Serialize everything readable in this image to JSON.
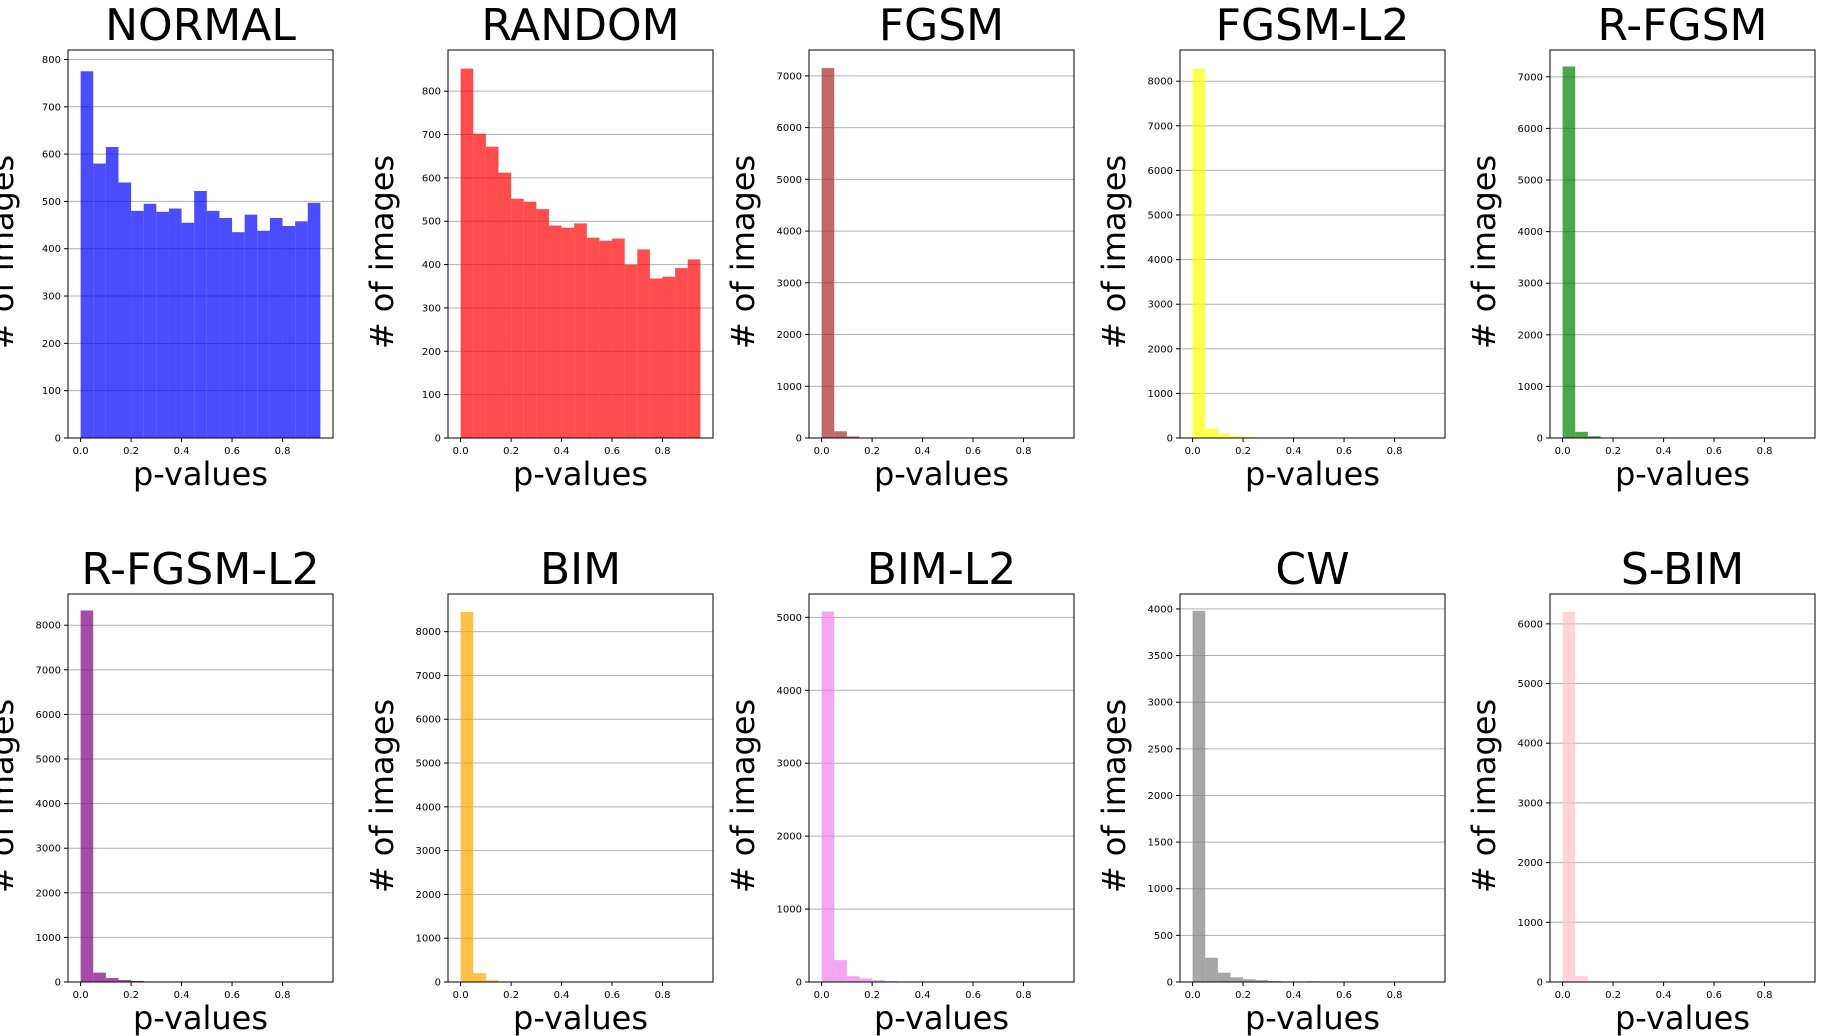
{
  "chart_data": [
    {
      "type": "bar",
      "title": "NORMAL",
      "xlabel": "p-values",
      "ylabel": "# of images",
      "color": "#0000ff",
      "opacity": 0.7,
      "bin_width": 0.05,
      "xlim": [
        -0.05,
        1.0
      ],
      "ylim": [
        0,
        820
      ],
      "xticks": [
        0.0,
        0.2,
        0.4,
        0.6,
        0.8
      ],
      "xtick_labels": [
        "0.0",
        "0.2",
        "0.4",
        "0.6",
        "0.8"
      ],
      "yticks": [
        0,
        100,
        200,
        300,
        400,
        500,
        600,
        700,
        800
      ],
      "ytick_labels": [
        "0",
        "100",
        "200",
        "300",
        "400",
        "500",
        "600",
        "700",
        "800"
      ],
      "bin_starts": [
        0.0,
        0.05,
        0.1,
        0.15,
        0.2,
        0.25,
        0.3,
        0.35,
        0.4,
        0.45,
        0.5,
        0.55,
        0.6,
        0.65,
        0.7,
        0.75,
        0.8,
        0.85,
        0.9
      ],
      "values": [
        775,
        580,
        615,
        540,
        480,
        495,
        478,
        485,
        455,
        522,
        480,
        465,
        435,
        472,
        438,
        465,
        448,
        458,
        497
      ],
      "grid": "y"
    },
    {
      "type": "bar",
      "title": "RANDOM",
      "xlabel": "p-values",
      "ylabel": "# of images",
      "color": "#ff0000",
      "opacity": 0.7,
      "bin_width": 0.05,
      "xlim": [
        -0.05,
        1.0
      ],
      "ylim": [
        0,
        895
      ],
      "xticks": [
        0.0,
        0.2,
        0.4,
        0.6,
        0.8
      ],
      "xtick_labels": [
        "0.0",
        "0.2",
        "0.4",
        "0.6",
        "0.8"
      ],
      "yticks": [
        0,
        100,
        200,
        300,
        400,
        500,
        600,
        700,
        800
      ],
      "ytick_labels": [
        "0",
        "100",
        "200",
        "300",
        "400",
        "500",
        "600",
        "700",
        "800"
      ],
      "bin_starts": [
        0.0,
        0.05,
        0.1,
        0.15,
        0.2,
        0.25,
        0.3,
        0.35,
        0.4,
        0.45,
        0.5,
        0.55,
        0.6,
        0.65,
        0.7,
        0.75,
        0.8,
        0.85,
        0.9
      ],
      "values": [
        852,
        702,
        672,
        612,
        552,
        545,
        528,
        490,
        485,
        495,
        462,
        455,
        460,
        400,
        435,
        368,
        372,
        392,
        412
      ],
      "grid": "y"
    },
    {
      "type": "bar",
      "title": "FGSM",
      "xlabel": "p-values",
      "ylabel": "# of images",
      "color": "#a52a2a",
      "opacity": 0.7,
      "bin_width": 0.05,
      "xlim": [
        -0.05,
        1.0
      ],
      "ylim": [
        0,
        7500
      ],
      "xticks": [
        0.0,
        0.2,
        0.4,
        0.6,
        0.8
      ],
      "xtick_labels": [
        "0.0",
        "0.2",
        "0.4",
        "0.6",
        "0.8"
      ],
      "yticks": [
        0,
        1000,
        2000,
        3000,
        4000,
        5000,
        6000,
        7000
      ],
      "ytick_labels": [
        "0",
        "1000",
        "2000",
        "3000",
        "4000",
        "5000",
        "6000",
        "7000"
      ],
      "bin_starts": [
        0.0,
        0.05,
        0.1,
        0.15
      ],
      "values": [
        7150,
        130,
        30,
        8
      ],
      "grid": "y"
    },
    {
      "type": "bar",
      "title": "FGSM-L2",
      "xlabel": "p-values",
      "ylabel": "# of images",
      "color": "#ffff00",
      "opacity": 0.7,
      "bin_width": 0.05,
      "xlim": [
        -0.05,
        1.0
      ],
      "ylim": [
        0,
        8700
      ],
      "xticks": [
        0.0,
        0.2,
        0.4,
        0.6,
        0.8
      ],
      "xtick_labels": [
        "0.0",
        "0.2",
        "0.4",
        "0.6",
        "0.8"
      ],
      "yticks": [
        0,
        1000,
        2000,
        3000,
        4000,
        5000,
        6000,
        7000,
        8000
      ],
      "ytick_labels": [
        "0",
        "1000",
        "2000",
        "3000",
        "4000",
        "5000",
        "6000",
        "7000",
        "8000"
      ],
      "bin_starts": [
        0.0,
        0.05,
        0.1,
        0.15,
        0.2,
        0.25
      ],
      "values": [
        8280,
        210,
        100,
        45,
        25,
        10
      ],
      "grid": "y"
    },
    {
      "type": "bar",
      "title": "R-FGSM",
      "xlabel": "p-values",
      "ylabel": "# of images",
      "color": "#008000",
      "opacity": 0.7,
      "bin_width": 0.05,
      "xlim": [
        -0.05,
        1.0
      ],
      "ylim": [
        0,
        7520
      ],
      "xticks": [
        0.0,
        0.2,
        0.4,
        0.6,
        0.8
      ],
      "xtick_labels": [
        "0.0",
        "0.2",
        "0.4",
        "0.6",
        "0.8"
      ],
      "yticks": [
        0,
        1000,
        2000,
        3000,
        4000,
        5000,
        6000,
        7000
      ],
      "ytick_labels": [
        "0",
        "1000",
        "2000",
        "3000",
        "4000",
        "5000",
        "6000",
        "7000"
      ],
      "bin_starts": [
        0.0,
        0.05,
        0.1,
        0.15
      ],
      "values": [
        7200,
        120,
        35,
        10
      ],
      "grid": "y"
    },
    {
      "type": "bar",
      "title": "R-FGSM-L2",
      "xlabel": "p-values",
      "ylabel": "# of images",
      "color": "#800080",
      "opacity": 0.7,
      "bin_width": 0.05,
      "xlim": [
        -0.05,
        1.0
      ],
      "ylim": [
        0,
        8700
      ],
      "xticks": [
        0.0,
        0.2,
        0.4,
        0.6,
        0.8
      ],
      "xtick_labels": [
        "0.0",
        "0.2",
        "0.4",
        "0.6",
        "0.8"
      ],
      "yticks": [
        0,
        1000,
        2000,
        3000,
        4000,
        5000,
        6000,
        7000,
        8000
      ],
      "ytick_labels": [
        "0",
        "1000",
        "2000",
        "3000",
        "4000",
        "5000",
        "6000",
        "7000",
        "8000"
      ],
      "bin_starts": [
        0.0,
        0.05,
        0.1,
        0.15,
        0.2,
        0.25,
        0.3
      ],
      "values": [
        8330,
        210,
        90,
        45,
        25,
        12,
        5
      ],
      "grid": "y"
    },
    {
      "type": "bar",
      "title": "BIM",
      "xlabel": "p-values",
      "ylabel": "# of images",
      "color": "#ffa500",
      "opacity": 0.7,
      "bin_width": 0.05,
      "xlim": [
        -0.05,
        1.0
      ],
      "ylim": [
        0,
        8860
      ],
      "xticks": [
        0.0,
        0.2,
        0.4,
        0.6,
        0.8
      ],
      "xtick_labels": [
        "0.0",
        "0.2",
        "0.4",
        "0.6",
        "0.8"
      ],
      "yticks": [
        0,
        1000,
        2000,
        3000,
        4000,
        5000,
        6000,
        7000,
        8000
      ],
      "ytick_labels": [
        "0",
        "1000",
        "2000",
        "3000",
        "4000",
        "5000",
        "6000",
        "7000",
        "8000"
      ],
      "bin_starts": [
        0.0,
        0.05,
        0.1,
        0.15
      ],
      "values": [
        8450,
        200,
        40,
        10
      ],
      "grid": "y"
    },
    {
      "type": "bar",
      "title": "BIM-L2",
      "xlabel": "p-values",
      "ylabel": "# of images",
      "color": "#ee82ee",
      "opacity": 0.7,
      "bin_width": 0.05,
      "xlim": [
        -0.05,
        1.0
      ],
      "ylim": [
        0,
        5320
      ],
      "xticks": [
        0.0,
        0.2,
        0.4,
        0.6,
        0.8
      ],
      "xtick_labels": [
        "0.0",
        "0.2",
        "0.4",
        "0.6",
        "0.8"
      ],
      "yticks": [
        0,
        1000,
        2000,
        3000,
        4000,
        5000
      ],
      "ytick_labels": [
        "0",
        "1000",
        "2000",
        "3000",
        "4000",
        "5000"
      ],
      "bin_starts": [
        0.0,
        0.05,
        0.1,
        0.15,
        0.2,
        0.25,
        0.3
      ],
      "values": [
        5080,
        300,
        80,
        50,
        25,
        12,
        5
      ],
      "grid": "y"
    },
    {
      "type": "bar",
      "title": "CW",
      "xlabel": "p-values",
      "ylabel": "# of images",
      "color": "#808080",
      "opacity": 0.7,
      "bin_width": 0.05,
      "xlim": [
        -0.05,
        1.0
      ],
      "ylim": [
        0,
        4160
      ],
      "xticks": [
        0.0,
        0.2,
        0.4,
        0.6,
        0.8
      ],
      "xtick_labels": [
        "0.0",
        "0.2",
        "0.4",
        "0.6",
        "0.8"
      ],
      "yticks": [
        0,
        500,
        1000,
        1500,
        2000,
        2500,
        3000,
        3500,
        4000
      ],
      "ytick_labels": [
        "0",
        "500",
        "1000",
        "1500",
        "2000",
        "2500",
        "3000",
        "3500",
        "4000"
      ],
      "bin_starts": [
        0.0,
        0.05,
        0.1,
        0.15,
        0.2,
        0.25,
        0.3,
        0.35,
        0.4,
        0.45
      ],
      "values": [
        3980,
        260,
        100,
        50,
        30,
        20,
        10,
        5,
        3,
        8
      ],
      "grid": "y"
    },
    {
      "type": "bar",
      "title": "S-BIM",
      "xlabel": "p-values",
      "ylabel": "# of images",
      "color": "#ffc0cb",
      "opacity": 0.7,
      "bin_width": 0.05,
      "xlim": [
        -0.05,
        1.0
      ],
      "ylim": [
        0,
        6500
      ],
      "xticks": [
        0.0,
        0.2,
        0.4,
        0.6,
        0.8
      ],
      "xtick_labels": [
        "0.0",
        "0.2",
        "0.4",
        "0.6",
        "0.8"
      ],
      "yticks": [
        0,
        1000,
        2000,
        3000,
        4000,
        5000,
        6000
      ],
      "ytick_labels": [
        "0",
        "1000",
        "2000",
        "3000",
        "4000",
        "5000",
        "6000"
      ],
      "bin_starts": [
        0.0,
        0.05,
        0.1
      ],
      "values": [
        6200,
        100,
        20
      ],
      "grid": "y"
    }
  ]
}
